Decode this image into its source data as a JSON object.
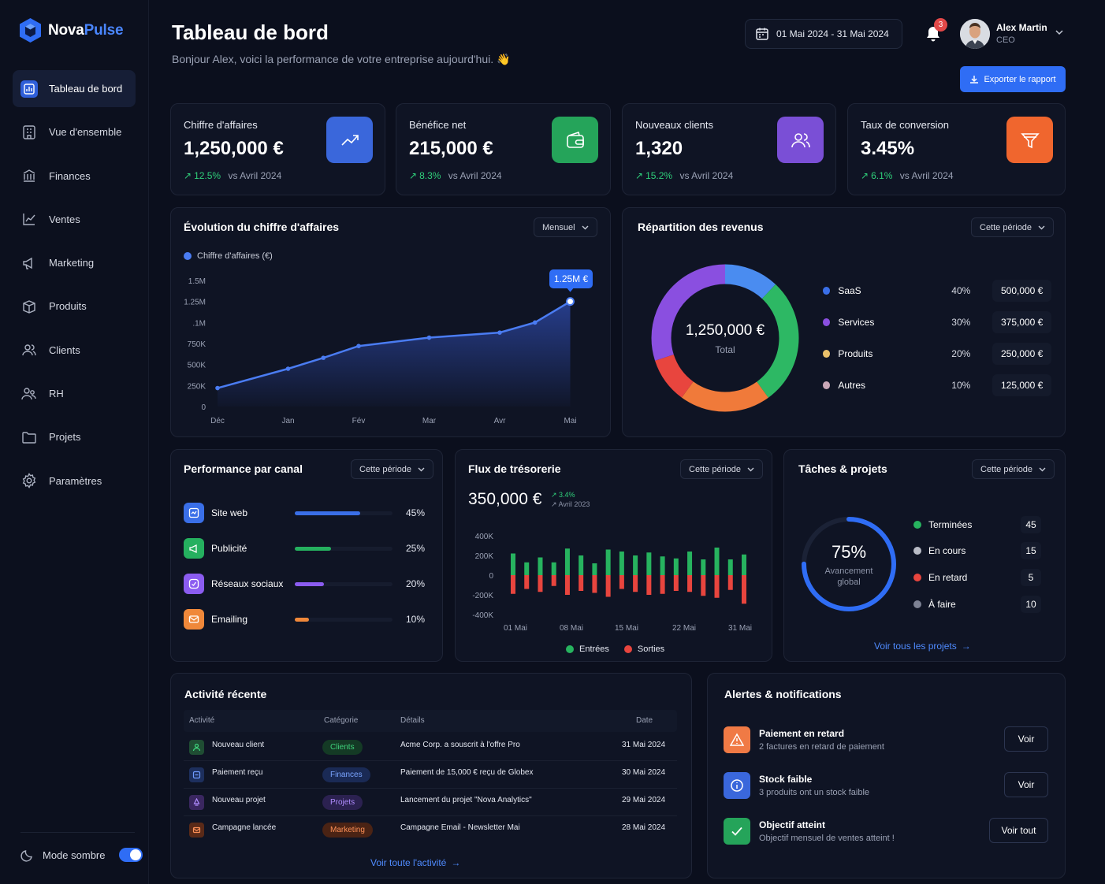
{
  "app": {
    "brand_part1": "Nova",
    "brand_part2": "Pulse",
    "accent": "#2f6df5"
  },
  "sidebar": {
    "items": [
      {
        "label": "Tableau de bord",
        "icon": "dashboard-icon",
        "active": true
      },
      {
        "label": "Vue d'ensemble",
        "icon": "building-icon"
      },
      {
        "label": "Finances",
        "icon": "bank-icon"
      },
      {
        "label": "Ventes",
        "icon": "chart-icon"
      },
      {
        "label": "Marketing",
        "icon": "megaphone-icon"
      },
      {
        "label": "Produits",
        "icon": "box-icon"
      },
      {
        "label": "Clients",
        "icon": "users-icon"
      },
      {
        "label": "RH",
        "icon": "team-icon"
      },
      {
        "label": "Projets",
        "icon": "folder-icon"
      },
      {
        "label": "Paramètres",
        "icon": "gear-icon"
      }
    ],
    "dark_mode_label": "Mode sombre",
    "dark_mode_on": true
  },
  "header": {
    "title": "Tableau de bord",
    "subtitle": "Bonjour Alex, voici la performance de votre entreprise aujourd'hui. 👋",
    "date_range": "01 Mai 2024 - 31 Mai 2024",
    "notif_count": "3",
    "user_name": "Alex Martin",
    "user_role": "CEO",
    "export_label": "Exporter le rapport"
  },
  "kpis": [
    {
      "label": "Chiffre d'affaires",
      "value": "1,250,000 €",
      "delta": "12.5%",
      "compare": "vs Avril 2024",
      "icon": "trend-up-icon",
      "color": "#3a67db"
    },
    {
      "label": "Bénéfice net",
      "value": "215,000 €",
      "delta": "8.3%",
      "compare": "vs Avril 2024",
      "icon": "wallet-icon",
      "color": "#25a45a"
    },
    {
      "label": "Nouveaux clients",
      "value": "1,320",
      "delta": "15.2%",
      "compare": "vs Avril 2024",
      "icon": "users-icon",
      "color": "#7a4fd6"
    },
    {
      "label": "Taux de conversion",
      "value": "3.45%",
      "delta": "6.1%",
      "compare": "vs Avril 2024",
      "icon": "funnel-icon",
      "color": "#f0662e"
    }
  ],
  "revenue_chart": {
    "title": "Évolution du chiffre d'affaires",
    "period": "Mensuel",
    "tooltip": "1.25M €",
    "chart_data": {
      "type": "area",
      "series": [
        {
          "name": "Chiffre d'affaires (€)",
          "values": [
            220000,
            450000,
            580000,
            720000,
            820000,
            880000,
            1000000,
            1250000
          ],
          "x": [
            0,
            1,
            1.5,
            2,
            3,
            4,
            4.5,
            5
          ]
        }
      ],
      "categories": [
        "Déc",
        "Jan",
        "Fév",
        "Mar",
        "Avr",
        "Mai"
      ],
      "y_ticks": [
        "0",
        "250K",
        "500K",
        "750K",
        ".1M",
        "1.25M",
        "1.5M"
      ],
      "ylim": [
        0,
        1500000
      ]
    }
  },
  "revenue_split": {
    "title": "Répartition des revenus",
    "period": "Cette période",
    "total_value": "1,250,000 €",
    "total_label": "Total",
    "chart_data": {
      "type": "pie",
      "items": [
        {
          "name": "SaaS",
          "pct": "40%",
          "amount": "500,000 €",
          "value": 40,
          "color": "#2db864"
        },
        {
          "name": "Services",
          "pct": "30%",
          "amount": "375,000 €",
          "value": 30,
          "color": "#8a4fe0"
        },
        {
          "name": "Produits",
          "pct": "20%",
          "amount": "250,000 €",
          "value": 20,
          "color": "#e9b949"
        },
        {
          "name": "Autres",
          "pct": "10%",
          "amount": "125,000 €",
          "value": 10,
          "color": "#c9a7b7"
        }
      ]
    }
  },
  "channels": {
    "title": "Performance par canal",
    "period": "Cette période",
    "items": [
      {
        "name": "Site web",
        "pct": "45%",
        "value": 0.45,
        "color": "#3a6fe8",
        "icon": "globe-icon"
      },
      {
        "name": "Publicité",
        "pct": "25%",
        "value": 0.25,
        "color": "#25b05f",
        "icon": "megaphone-icon"
      },
      {
        "name": "Réseaux sociaux",
        "pct": "20%",
        "value": 0.2,
        "color": "#8b5cf0",
        "icon": "share-icon"
      },
      {
        "name": "Emailing",
        "pct": "10%",
        "value": 0.1,
        "color": "#f0883a",
        "icon": "mail-icon"
      }
    ]
  },
  "cashflow": {
    "title": "Flux de trésorerie",
    "period": "Cette période",
    "value": "350,000 €",
    "delta": "3.4%",
    "compare": "Avril 2023",
    "chart_data": {
      "type": "bar",
      "y_ticks": [
        "400K",
        "200K",
        "0",
        "-200K",
        "-400K"
      ],
      "ylim": [
        -400000,
        400000
      ],
      "x_ticks": [
        "01 Mai",
        "08 Mai",
        "15 Mai",
        "22 Mai",
        "31 Mai"
      ],
      "series": [
        {
          "name": "Entrées",
          "color": "#27b35f",
          "values": [
            220000,
            130000,
            180000,
            130000,
            270000,
            200000,
            120000,
            260000,
            240000,
            200000,
            230000,
            190000,
            170000,
            240000,
            160000,
            280000,
            160000,
            210000
          ]
        },
        {
          "name": "Sorties",
          "color": "#e8453e",
          "values": [
            -190000,
            -140000,
            -170000,
            -110000,
            -200000,
            -160000,
            -180000,
            -220000,
            -140000,
            -170000,
            -200000,
            -190000,
            -160000,
            -170000,
            -210000,
            -230000,
            -150000,
            -290000
          ]
        }
      ]
    }
  },
  "tasks": {
    "title": "Tâches & projets",
    "period": "Cette période",
    "progress_pct": "75%",
    "progress_value": 0.75,
    "progress_label1": "Avancement",
    "progress_label2": "global",
    "items": [
      {
        "name": "Terminées",
        "count": "45",
        "color": "#27b35f"
      },
      {
        "name": "En cours",
        "count": "15",
        "color": "#b9bcc6"
      },
      {
        "name": "En retard",
        "count": "5",
        "color": "#e8453e"
      },
      {
        "name": "À faire",
        "count": "10",
        "color": "#7d8294"
      }
    ],
    "link": "Voir tous les projets"
  },
  "activity": {
    "title": "Activité récente",
    "columns": [
      "Activité",
      "Catégorie",
      "Détails",
      "Date"
    ],
    "rows": [
      {
        "activity": "Nouveau client",
        "category": "Clients",
        "details": "Acme Corp. a souscrit à l'offre Pro",
        "date": "31 Mai 2024",
        "color": "#25a45a",
        "icon": "user-icon"
      },
      {
        "activity": "Paiement reçu",
        "category": "Finances",
        "details": "Paiement de 15,000 € reçu de Globex",
        "date": "30 Mai 2024",
        "color": "#3a67db",
        "icon": "card-icon"
      },
      {
        "activity": "Nouveau projet",
        "category": "Projets",
        "details": "Lancement du projet \"Nova Analytics\"",
        "date": "29 Mai 2024",
        "color": "#7a4fd6",
        "icon": "rocket-icon"
      },
      {
        "activity": "Campagne lancée",
        "category": "Marketing",
        "details": "Campagne Email - Newsletter Mai",
        "date": "28 Mai 2024",
        "color": "#f0662e",
        "icon": "mail-icon"
      }
    ],
    "link": "Voir toute l'activité"
  },
  "alerts": {
    "title": "Alertes & notifications",
    "items": [
      {
        "title": "Paiement en retard",
        "desc": "2 factures en retard de paiement",
        "button": "Voir",
        "color": "#f0662e",
        "icon": "warning-icon"
      },
      {
        "title": "Stock faible",
        "desc": "3 produits ont un stock faible",
        "button": "Voir",
        "color": "#3a67db",
        "icon": "info-icon"
      },
      {
        "title": "Objectif atteint",
        "desc": "Objectif mensuel de ventes atteint !",
        "button": "Voir tout",
        "color": "#25a45a",
        "icon": "check-icon"
      }
    ]
  }
}
